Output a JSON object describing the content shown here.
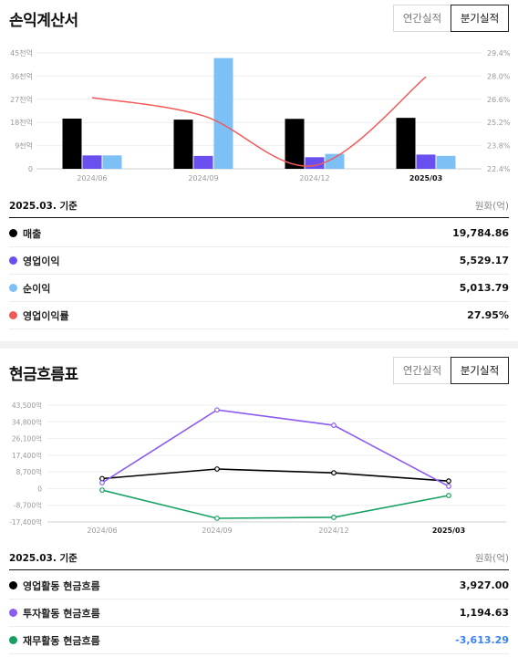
{
  "income": {
    "title": "손익계산서",
    "toggle": {
      "annual_label": "연간실적",
      "quarterly_label": "분기실적"
    },
    "basis": "2025.03. 기준",
    "unit": "원화(억)",
    "rows": [
      {
        "label": "매출",
        "value": "19,784.86",
        "color": "#000000"
      },
      {
        "label": "영업이익",
        "value": "5,529.17",
        "color": "#6a4ff0"
      },
      {
        "label": "순이익",
        "value": "5,013.79",
        "color": "#7cc0f5"
      },
      {
        "label": "영업이익률",
        "value": "27.95%",
        "color": "#f05a5a"
      }
    ]
  },
  "cashflow": {
    "title": "현금흐름표",
    "toggle": {
      "annual_label": "연간실적",
      "quarterly_label": "분기실적"
    },
    "basis": "2025.03. 기준",
    "unit": "원화(억)",
    "rows": [
      {
        "label": "영업활동 현금흐름",
        "value": "3,927.00",
        "color": "#000000"
      },
      {
        "label": "투자활동 현금흐름",
        "value": "1,194.63",
        "color": "#8a5cf0"
      },
      {
        "label": "재무활동 현금흐름",
        "value": "-3,613.29",
        "color": "#16a060",
        "negative": true
      }
    ]
  },
  "chart_data": [
    {
      "type": "bar",
      "categories": [
        "2024/06",
        "2024/09",
        "2024/12",
        "2025/03"
      ],
      "series": [
        {
          "name": "매출",
          "values": [
            19500,
            19100,
            19400,
            19784.86
          ],
          "color": "#000000"
        },
        {
          "name": "영업이익",
          "values": [
            5200,
            5000,
            4500,
            5529.17
          ],
          "color": "#6a4ff0"
        },
        {
          "name": "순이익",
          "values": [
            5200,
            43000,
            5800,
            5013.79
          ],
          "color": "#7cc0f5"
        }
      ],
      "line_series": {
        "name": "영업이익률",
        "values": [
          26.7,
          25.6,
          22.6,
          27.95
        ],
        "color": "#f05a5a"
      },
      "y_ticks": [
        "0",
        "9천억",
        "18천억",
        "27천억",
        "36천억",
        "45천억"
      ],
      "y_ticks_right": [
        "22.4%",
        "23.8%",
        "25.2%",
        "26.6%",
        "28.0%",
        "29.4%"
      ],
      "ylim": [
        0,
        45000
      ],
      "ylim_right": [
        22.4,
        29.4
      ]
    },
    {
      "type": "line",
      "categories": [
        "2024/06",
        "2024/09",
        "2024/12",
        "2025/03"
      ],
      "series": [
        {
          "name": "영업활동 현금흐름",
          "values": [
            5200,
            10200,
            8200,
            3927.0
          ],
          "color": "#000000"
        },
        {
          "name": "투자활동 현금흐름",
          "values": [
            3000,
            41000,
            33000,
            1194.63
          ],
          "color": "#8a5cf0"
        },
        {
          "name": "재무활동 현금흐름",
          "values": [
            -800,
            -15500,
            -15000,
            -3613.29
          ],
          "color": "#16a060"
        }
      ],
      "y_ticks": [
        "43,500억",
        "34,800억",
        "26,100억",
        "17,400억",
        "8,700억",
        "0",
        "-8,700억",
        "-17,400억"
      ],
      "ylim": [
        -17400,
        43500
      ]
    }
  ]
}
